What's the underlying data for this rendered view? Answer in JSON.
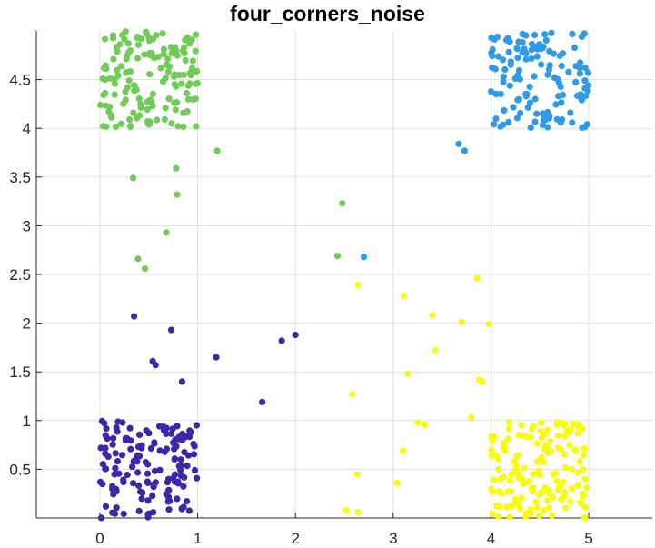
{
  "chart_data": {
    "type": "scatter",
    "title": "four_corners_noise",
    "xlabel": "",
    "ylabel": "",
    "xlim": [
      -0.65,
      5.65
    ],
    "ylim": [
      0,
      5
    ],
    "xticks": [
      0,
      1,
      2,
      3,
      4,
      5
    ],
    "yticks": [
      0.5,
      1,
      1.5,
      2,
      2.5,
      3,
      3.5,
      4,
      4.5
    ],
    "xtick_labels": [
      "0",
      "1",
      "2",
      "3",
      "4",
      "5"
    ],
    "ytick_labels": [
      "0.5",
      "1",
      "1.5",
      "2",
      "2.5",
      "3",
      "3.5",
      "4",
      "4.5"
    ],
    "grid": true,
    "legend": "none",
    "clusters": [
      {
        "color": "#3d26a8",
        "corner": {
          "x_range": [
            0,
            1
          ],
          "y_range": [
            0,
            1
          ],
          "count": 150
        },
        "points": [
          [
            0.35,
            2.07
          ],
          [
            0.73,
            1.93
          ],
          [
            0.54,
            1.61
          ],
          [
            0.57,
            1.57
          ],
          [
            0.84,
            1.4
          ],
          [
            1.19,
            1.65
          ],
          [
            1.66,
            1.19
          ],
          [
            1.86,
            1.82
          ],
          [
            2.0,
            1.88
          ]
        ]
      },
      {
        "color": "#6fcc56",
        "corner": {
          "x_range": [
            0,
            1
          ],
          "y_range": [
            4,
            5
          ],
          "count": 150
        },
        "points": [
          [
            1.2,
            3.77
          ],
          [
            0.78,
            3.59
          ],
          [
            0.34,
            3.49
          ],
          [
            0.79,
            3.32
          ],
          [
            0.68,
            2.93
          ],
          [
            0.39,
            2.66
          ],
          [
            0.46,
            2.56
          ],
          [
            2.48,
            3.23
          ],
          [
            2.43,
            2.69
          ]
        ]
      },
      {
        "color": "#2f9ae8",
        "corner": {
          "x_range": [
            4,
            5
          ],
          "y_range": [
            4,
            5
          ],
          "count": 130
        },
        "points": [
          [
            3.67,
            3.84
          ],
          [
            3.73,
            3.77
          ],
          [
            2.7,
            2.68
          ]
        ]
      },
      {
        "color": "#f9fb0e",
        "corner": {
          "x_range": [
            4,
            5
          ],
          "y_range": [
            0,
            1
          ],
          "count": 150
        },
        "points": [
          [
            2.64,
            2.39
          ],
          [
            3.11,
            2.28
          ],
          [
            3.86,
            2.46
          ],
          [
            3.4,
            2.08
          ],
          [
            3.7,
            2.01
          ],
          [
            3.98,
            1.99
          ],
          [
            3.43,
            1.72
          ],
          [
            3.15,
            1.48
          ],
          [
            3.88,
            1.42
          ],
          [
            3.91,
            1.4
          ],
          [
            2.58,
            1.27
          ],
          [
            3.25,
            0.98
          ],
          [
            3.32,
            0.96
          ],
          [
            3.8,
            1.03
          ],
          [
            3.1,
            0.69
          ],
          [
            2.63,
            0.45
          ],
          [
            3.04,
            0.36
          ],
          [
            2.52,
            0.08
          ],
          [
            2.64,
            0.06
          ]
        ]
      }
    ]
  }
}
